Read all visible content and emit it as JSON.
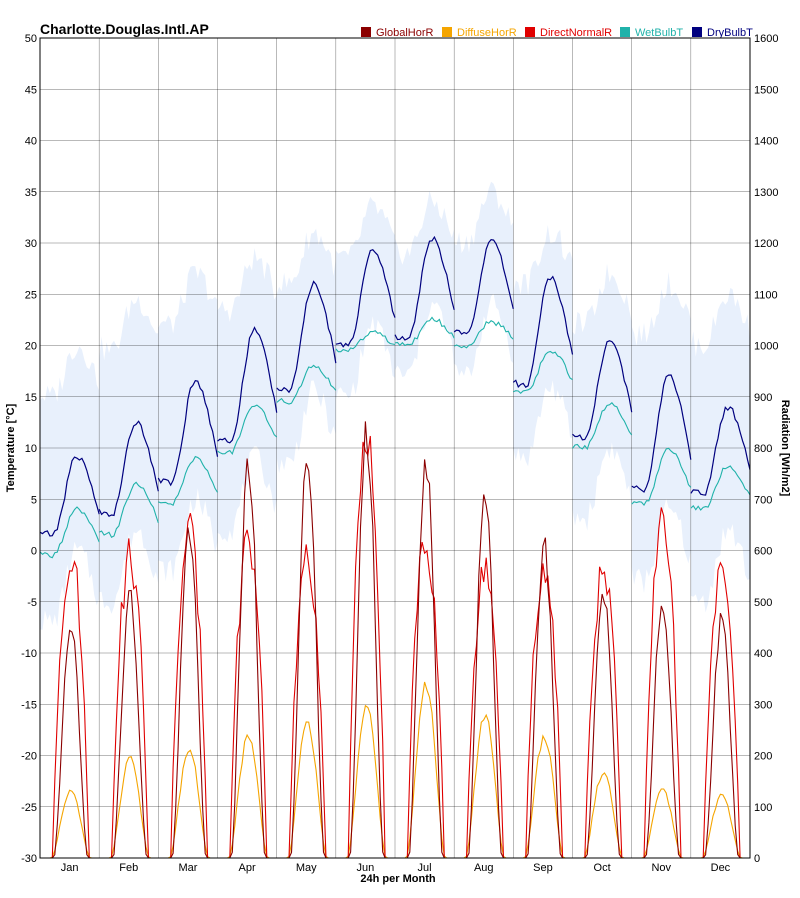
{
  "chart_data": {
    "type": "line",
    "title": "Charlotte.Douglas.Intl.AP",
    "xlabel": "24h per Month",
    "ylabel_left": "Temperature [°C]",
    "ylabel_right": "Radiation [Wh/m2]",
    "ylim_left": [
      -30,
      50
    ],
    "ylim_right": [
      0,
      1600
    ],
    "yticks_left": [
      50,
      45,
      40,
      35,
      30,
      25,
      20,
      15,
      10,
      5,
      0,
      -5,
      -10,
      -15,
      -20,
      -25,
      -30
    ],
    "yticks_right": [
      1600,
      1500,
      1400,
      1300,
      1200,
      1100,
      1000,
      900,
      800,
      700,
      600,
      500,
      400,
      300,
      200,
      100,
      0
    ],
    "categories": [
      "Jan",
      "Feb",
      "Mar",
      "Apr",
      "May",
      "Jun",
      "Jul",
      "Aug",
      "Sep",
      "Oct",
      "Nov",
      "Dec"
    ],
    "grid": true,
    "legend_position": "top-right",
    "legend": [
      {
        "key": "global",
        "label": "GlobalHorR",
        "color": "#8b0000"
      },
      {
        "key": "diffuse",
        "label": "DiffuseHorR",
        "color": "#f5a500"
      },
      {
        "key": "direct",
        "label": "DirectNormalR",
        "color": "#e00000"
      },
      {
        "key": "wetbulb",
        "label": "WetBulbT",
        "color": "#20b2aa"
      },
      {
        "key": "drybulb",
        "label": "DryBulbT",
        "color": "#00007f"
      }
    ],
    "colors": {
      "range_band": "#e8f0fc",
      "grid": "#000000"
    },
    "series_monthly": {
      "drybulb_min": [
        1.5,
        3.5,
        6.5,
        10.5,
        15.5,
        20.0,
        20.5,
        21.0,
        16.0,
        11.0,
        6.0,
        5.5
      ],
      "drybulb_max": [
        9.2,
        12.5,
        16.5,
        21.5,
        26.0,
        29.2,
        30.5,
        30.2,
        26.7,
        20.5,
        17.0,
        14.0
      ],
      "wetbulb_min": [
        -0.5,
        1.5,
        4.5,
        9.5,
        14.5,
        19.5,
        20.0,
        20.0,
        15.5,
        10.0,
        4.5,
        4.0
      ],
      "wetbulb_max": [
        4.0,
        6.5,
        9.0,
        14.3,
        18.0,
        21.3,
        22.6,
        22.3,
        19.5,
        14.3,
        10.0,
        8.2
      ],
      "band_min": [
        -7.0,
        -5.0,
        -2.0,
        2.0,
        8.5,
        15.0,
        17.0,
        17.0,
        9.0,
        3.0,
        -3.0,
        -5.0
      ],
      "band_max": [
        20.0,
        24.5,
        27.0,
        28.5,
        31.0,
        33.5,
        34.0,
        35.0,
        31.0,
        27.0,
        26.0,
        25.0
      ],
      "global_peak": [
        446,
        509,
        645,
        780,
        776,
        821,
        786,
        702,
        604,
        526,
        500,
        462
      ],
      "diffuse_peak": [
        130,
        192,
        212,
        236,
        264,
        291,
        339,
        276,
        236,
        167,
        132,
        123
      ],
      "direct_peak": [
        588,
        586,
        630,
        620,
        575,
        800,
        620,
        550,
        560,
        550,
        640,
        550
      ]
    }
  }
}
